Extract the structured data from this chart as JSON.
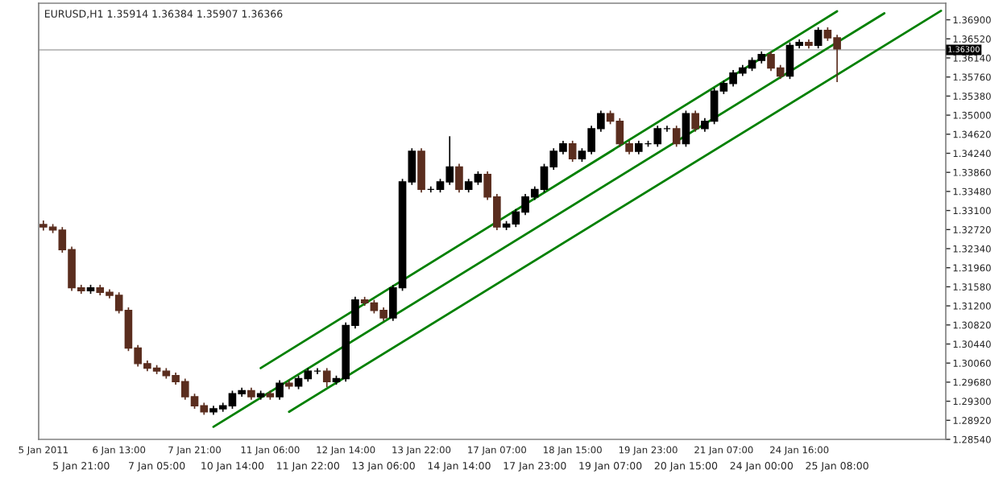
{
  "chart_data": {
    "type": "candlestick",
    "title": "EURUSD,H1 1.35914 1.36384 1.35907 1.36366",
    "categories": [
      "5 Jan 2011",
      null,
      null,
      null,
      "5 Jan 21:00",
      null,
      null,
      null,
      "6 Jan 13:00",
      null,
      null,
      null,
      "7 Jan 05:00",
      null,
      null,
      null,
      "7 Jan 21:00",
      null,
      null,
      null,
      "10 Jan 14:00",
      null,
      null,
      null,
      "11 Jan 06:00",
      null,
      null,
      null,
      "11 Jan 22:00",
      null,
      null,
      null,
      "12 Jan 14:00",
      null,
      null,
      null,
      "13 Jan 06:00",
      null,
      null,
      null,
      "13 Jan 22:00",
      null,
      null,
      null,
      "14 Jan 14:00",
      null,
      null,
      null,
      "17 Jan 07:00",
      null,
      null,
      null,
      "17 Jan 23:00",
      null,
      null,
      null,
      "18 Jan 15:00",
      null,
      null,
      null,
      "19 Jan 07:00",
      null,
      null,
      null,
      "19 Jan 23:00",
      null,
      null,
      null,
      "20 Jan 15:00",
      null,
      null,
      null,
      "21 Jan 07:00",
      null,
      null,
      null,
      "24 Jan 00:00",
      null,
      null,
      null,
      "24 Jan 16:00",
      null,
      null,
      null,
      "25 Jan 08:00",
      null,
      null,
      null,
      null,
      null,
      null,
      null,
      null,
      null,
      null,
      null
    ],
    "ohlc": [
      [
        1.3282,
        1.329,
        1.327,
        1.3277
      ],
      [
        1.3277,
        1.3283,
        1.3265,
        1.3271
      ],
      [
        1.3271,
        1.3277,
        1.3226,
        1.3232
      ],
      [
        1.3232,
        1.3238,
        1.315,
        1.3156
      ],
      [
        1.3156,
        1.3162,
        1.3144,
        1.315
      ],
      [
        1.315,
        1.3162,
        1.3144,
        1.3156
      ],
      [
        1.3156,
        1.3162,
        1.3141,
        1.3147
      ],
      [
        1.3147,
        1.3153,
        1.3135,
        1.3141
      ],
      [
        1.3141,
        1.3147,
        1.3105,
        1.3111
      ],
      [
        1.3111,
        1.3117,
        1.303,
        1.3036
      ],
      [
        1.3036,
        1.3042,
        1.2999,
        1.3005
      ],
      [
        1.3005,
        1.3011,
        1.299,
        1.2996
      ],
      [
        1.2996,
        1.3002,
        1.2984,
        1.299
      ],
      [
        1.299,
        1.2996,
        1.2975,
        1.2981
      ],
      [
        1.2981,
        1.2987,
        1.2963,
        1.2969
      ],
      [
        1.2969,
        1.2975,
        1.2933,
        1.2939
      ],
      [
        1.2939,
        1.2945,
        1.2915,
        1.2921
      ],
      [
        1.2921,
        1.2927,
        1.2903,
        1.2909
      ],
      [
        1.2909,
        1.2921,
        1.2903,
        1.2915
      ],
      [
        1.2915,
        1.2927,
        1.2909,
        1.2921
      ],
      [
        1.2921,
        1.2951,
        1.2915,
        1.2945
      ],
      [
        1.2945,
        1.2957,
        1.2939,
        1.2951
      ],
      [
        1.2951,
        1.2957,
        1.2933,
        1.2939
      ],
      [
        1.2939,
        1.2951,
        1.2933,
        1.2945
      ],
      [
        1.2945,
        1.2951,
        1.2933,
        1.2939
      ],
      [
        1.2939,
        1.2972,
        1.2933,
        1.2966
      ],
      [
        1.2966,
        1.2972,
        1.2954,
        1.296
      ],
      [
        1.296,
        1.2981,
        1.2954,
        1.2975
      ],
      [
        1.2975,
        1.2996,
        1.2969,
        1.299
      ],
      [
        1.299,
        1.2996,
        1.2984,
        1.299
      ],
      [
        1.299,
        1.2996,
        1.2958,
        1.2969
      ],
      [
        1.2969,
        1.2981,
        1.2963,
        1.2975
      ],
      [
        1.2975,
        1.3087,
        1.2969,
        1.3081
      ],
      [
        1.3081,
        1.3138,
        1.3075,
        1.3132
      ],
      [
        1.3132,
        1.3138,
        1.312,
        1.3126
      ],
      [
        1.3126,
        1.3132,
        1.3105,
        1.3111
      ],
      [
        1.3111,
        1.3117,
        1.309,
        1.3096
      ],
      [
        1.3096,
        1.3162,
        1.309,
        1.3156
      ],
      [
        1.3156,
        1.3373,
        1.315,
        1.3367
      ],
      [
        1.3367,
        1.3434,
        1.3361,
        1.3428
      ],
      [
        1.3428,
        1.3434,
        1.3346,
        1.3352
      ],
      [
        1.3352,
        1.3358,
        1.3346,
        1.3352
      ],
      [
        1.3352,
        1.3373,
        1.3346,
        1.3367
      ],
      [
        1.3367,
        1.3458,
        1.3361,
        1.3397
      ],
      [
        1.3397,
        1.3403,
        1.3346,
        1.3352
      ],
      [
        1.3352,
        1.3373,
        1.3346,
        1.3367
      ],
      [
        1.3367,
        1.3388,
        1.3361,
        1.3382
      ],
      [
        1.3382,
        1.3388,
        1.3331,
        1.3337
      ],
      [
        1.3337,
        1.3343,
        1.3271,
        1.3277
      ],
      [
        1.3277,
        1.3289,
        1.3271,
        1.3283
      ],
      [
        1.3283,
        1.3313,
        1.3277,
        1.3307
      ],
      [
        1.3307,
        1.3343,
        1.3301,
        1.3337
      ],
      [
        1.3337,
        1.3358,
        1.3331,
        1.3352
      ],
      [
        1.3352,
        1.3403,
        1.3346,
        1.3397
      ],
      [
        1.3397,
        1.3434,
        1.3391,
        1.3428
      ],
      [
        1.3428,
        1.3449,
        1.3422,
        1.3443
      ],
      [
        1.3443,
        1.3449,
        1.3407,
        1.3413
      ],
      [
        1.3413,
        1.3434,
        1.3407,
        1.3428
      ],
      [
        1.3428,
        1.3479,
        1.3422,
        1.3473
      ],
      [
        1.3473,
        1.3509,
        1.3467,
        1.3503
      ],
      [
        1.3503,
        1.3509,
        1.3482,
        1.3488
      ],
      [
        1.3488,
        1.3494,
        1.3437,
        1.3443
      ],
      [
        1.3443,
        1.3449,
        1.3422,
        1.3428
      ],
      [
        1.3428,
        1.3449,
        1.3422,
        1.3443
      ],
      [
        1.3443,
        1.3449,
        1.3437,
        1.3443
      ],
      [
        1.3443,
        1.3479,
        1.3437,
        1.3473
      ],
      [
        1.3473,
        1.3479,
        1.3467,
        1.3473
      ],
      [
        1.3473,
        1.3479,
        1.3437,
        1.3443
      ],
      [
        1.3443,
        1.3509,
        1.3437,
        1.3503
      ],
      [
        1.3503,
        1.3509,
        1.3467,
        1.3473
      ],
      [
        1.3473,
        1.3494,
        1.3467,
        1.3488
      ],
      [
        1.3488,
        1.3554,
        1.3482,
        1.3548
      ],
      [
        1.3548,
        1.3569,
        1.3542,
        1.3563
      ],
      [
        1.3563,
        1.359,
        1.3557,
        1.3584
      ],
      [
        1.3584,
        1.36,
        1.3578,
        1.3594
      ],
      [
        1.3594,
        1.3615,
        1.3588,
        1.3609
      ],
      [
        1.3609,
        1.3627,
        1.3603,
        1.3621
      ],
      [
        1.3621,
        1.3627,
        1.3588,
        1.3594
      ],
      [
        1.3594,
        1.36,
        1.3572,
        1.3578
      ],
      [
        1.3578,
        1.3645,
        1.3572,
        1.3639
      ],
      [
        1.3639,
        1.3651,
        1.3633,
        1.3645
      ],
      [
        1.3645,
        1.3651,
        1.3633,
        1.3639
      ],
      [
        1.3639,
        1.3675,
        1.3633,
        1.3669
      ],
      [
        1.3669,
        1.3675,
        1.3648,
        1.3654
      ],
      [
        1.3654,
        1.366,
        1.3566,
        1.3632
      ],
      null,
      null,
      null,
      null,
      null,
      null,
      null,
      null,
      null,
      null,
      null
    ],
    "series": [
      {
        "type": "line",
        "color": "#008000",
        "values": [
          null,
          null,
          null,
          null,
          null,
          null,
          null,
          null,
          null,
          null,
          null,
          null,
          null,
          null,
          null,
          null,
          null,
          null,
          null,
          null,
          null,
          null,
          null,
          null,
          null,
          null,
          1.2909,
          null,
          null,
          null,
          null,
          null,
          null,
          null,
          null,
          null,
          null,
          null,
          null,
          null,
          null,
          null,
          null,
          null,
          null,
          null,
          null,
          null,
          null,
          null,
          null,
          null,
          null,
          null,
          null,
          null,
          null,
          null,
          null,
          null,
          null,
          null,
          null,
          null,
          null,
          null,
          null,
          null,
          null,
          null,
          null,
          null,
          null,
          null,
          null,
          null,
          null,
          null,
          null,
          null,
          null,
          null,
          null,
          null,
          null,
          null,
          null,
          null,
          null,
          null,
          null,
          null,
          null,
          null,
          null,
          1.3708
        ]
      },
      {
        "type": "line",
        "color": "#008000",
        "values": [
          null,
          null,
          null,
          null,
          null,
          null,
          null,
          null,
          null,
          null,
          null,
          null,
          null,
          null,
          null,
          null,
          null,
          null,
          1.2879,
          null,
          null,
          null,
          null,
          null,
          null,
          null,
          null,
          null,
          null,
          null,
          null,
          null,
          null,
          null,
          null,
          null,
          null,
          null,
          null,
          null,
          null,
          null,
          null,
          null,
          null,
          null,
          null,
          null,
          null,
          null,
          null,
          null,
          null,
          null,
          null,
          null,
          null,
          null,
          null,
          null,
          null,
          null,
          null,
          null,
          null,
          null,
          null,
          null,
          null,
          null,
          null,
          null,
          null,
          null,
          null,
          null,
          null,
          null,
          null,
          null,
          null,
          null,
          null,
          null,
          null,
          null,
          null,
          null,
          null,
          1.3703,
          null,
          null,
          null,
          null,
          null,
          null
        ]
      },
      {
        "type": "line",
        "color": "#008000",
        "values": [
          null,
          null,
          null,
          null,
          null,
          null,
          null,
          null,
          null,
          null,
          null,
          null,
          null,
          null,
          null,
          null,
          null,
          null,
          null,
          null,
          null,
          null,
          null,
          1.2996,
          null,
          null,
          null,
          null,
          null,
          null,
          null,
          null,
          null,
          null,
          null,
          null,
          null,
          null,
          null,
          null,
          null,
          null,
          null,
          null,
          null,
          null,
          null,
          null,
          null,
          null,
          null,
          null,
          null,
          null,
          null,
          null,
          null,
          null,
          null,
          null,
          null,
          null,
          null,
          null,
          null,
          null,
          null,
          null,
          null,
          null,
          null,
          null,
          null,
          null,
          null,
          null,
          null,
          null,
          null,
          null,
          null,
          null,
          null,
          null,
          1.3707,
          null,
          null,
          null,
          null,
          null,
          null,
          null,
          null,
          null,
          null,
          null
        ]
      }
    ],
    "ylim": [
      1.2854,
      1.3723
    ],
    "yticks": [
      {
        "value": 1.2854,
        "label": "1.28540"
      },
      {
        "value": 1.2892,
        "label": "1.28920"
      },
      {
        "value": 1.293,
        "label": "1.29300"
      },
      {
        "value": 1.2968,
        "label": "1.29680"
      },
      {
        "value": 1.3006,
        "label": "1.30060"
      },
      {
        "value": 1.3044,
        "label": "1.30440"
      },
      {
        "value": 1.3082,
        "label": "1.30820"
      },
      {
        "value": 1.312,
        "label": "1.31200"
      },
      {
        "value": 1.3158,
        "label": "1.31580"
      },
      {
        "value": 1.3196,
        "label": "1.31960"
      },
      {
        "value": 1.3234,
        "label": "1.32340"
      },
      {
        "value": 1.3272,
        "label": "1.32720"
      },
      {
        "value": 1.331,
        "label": "1.33100"
      },
      {
        "value": 1.3348,
        "label": "1.33480"
      },
      {
        "value": 1.3386,
        "label": "1.33860"
      },
      {
        "value": 1.3424,
        "label": "1.34240"
      },
      {
        "value": 1.3462,
        "label": "1.34620"
      },
      {
        "value": 1.35,
        "label": "1.35000"
      },
      {
        "value": 1.3538,
        "label": "1.35380"
      },
      {
        "value": 1.3576,
        "label": "1.35760"
      },
      {
        "value": 1.3614,
        "label": "1.36140"
      },
      {
        "value": 1.3652,
        "label": "1.36520"
      },
      {
        "value": 1.369,
        "label": "1.36900"
      }
    ],
    "ref_lines": [
      {
        "axis": "y",
        "value": 1.363,
        "label": "1.36300",
        "color": "#c0c0c0"
      }
    ],
    "grid": false,
    "legend": false
  }
}
